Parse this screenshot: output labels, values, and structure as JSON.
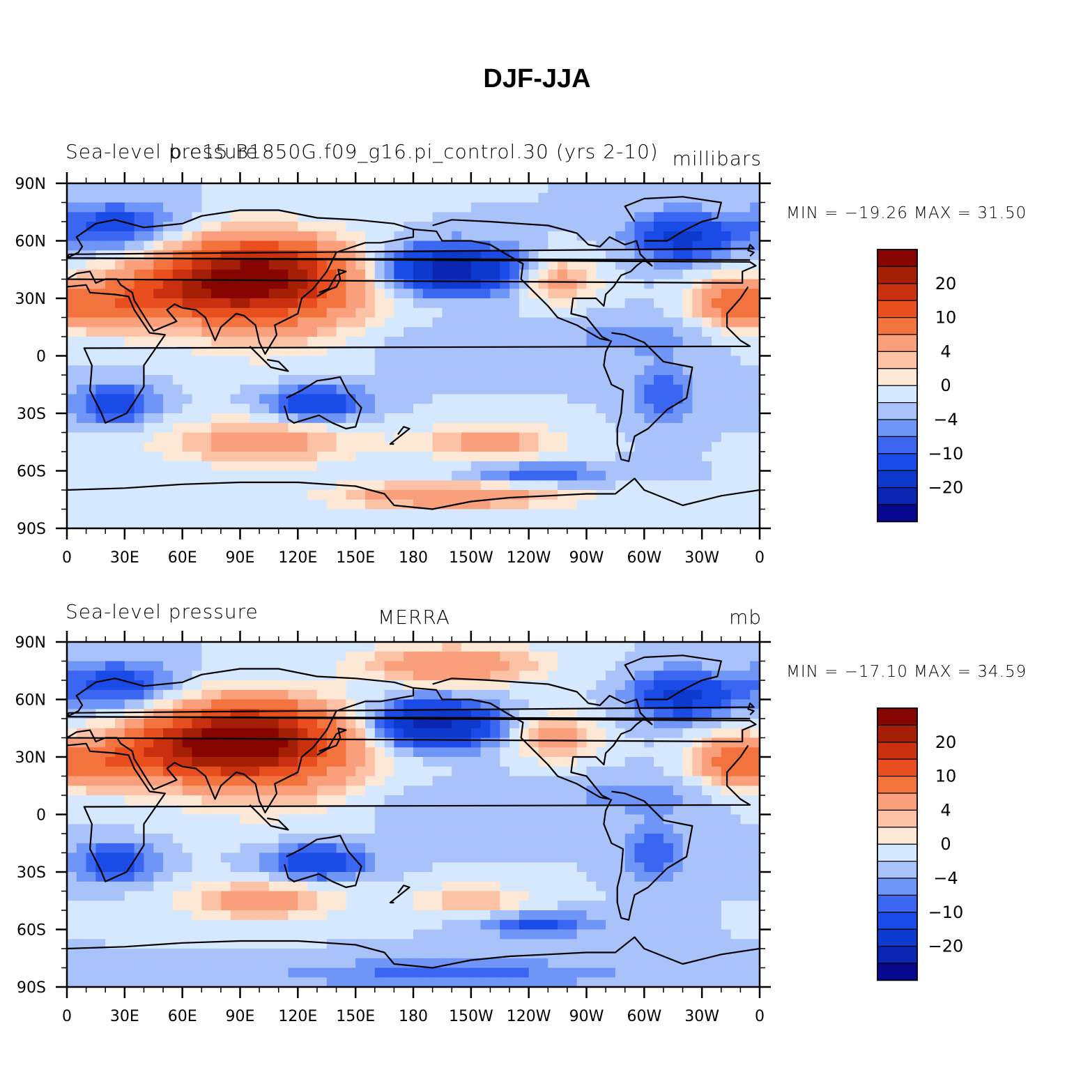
{
  "figure_title": "DJF-JJA",
  "colors": {
    "levels": [
      "#08088f",
      "#0b26b0",
      "#0d3acc",
      "#1a4be6",
      "#3a66f2",
      "#6f95f7",
      "#a9c3fa",
      "#d6e8fd",
      "#fde8d6",
      "#fcc2a6",
      "#f99f7b",
      "#f3733f",
      "#e94e1f",
      "#c8300f",
      "#a41f06",
      "#860500"
    ]
  },
  "chart_data": [
    {
      "type": "heatmap",
      "left_title": "Sea-level pressure",
      "center_title": "b.e15.B1850G.f09_g16.pi_control.30 (yrs 2-10)",
      "right_title": "millibars",
      "min_max_text": "MIN = −19.26  MAX =   31.50",
      "min": -19.26,
      "max": 31.5,
      "x_ticks": [
        "0",
        "30E",
        "60E",
        "90E",
        "120E",
        "150E",
        "180",
        "150W",
        "120W",
        "90W",
        "60W",
        "30W",
        "0"
      ],
      "y_ticks": [
        "90N",
        "60N",
        "30N",
        "0",
        "30S",
        "60S",
        "90S"
      ],
      "colorbar_labels": [
        "20",
        "10",
        "4",
        "0",
        "−4",
        "−10",
        "−20"
      ],
      "x_range": [
        0,
        360
      ],
      "y_range": [
        -90,
        90
      ]
    },
    {
      "type": "heatmap",
      "left_title": "Sea-level pressure",
      "center_title": "MERRA",
      "right_title": "mb",
      "min_max_text": "MIN = −17.10  MAX =   34.59",
      "min": -17.1,
      "max": 34.59,
      "x_ticks": [
        "0",
        "30E",
        "60E",
        "90E",
        "120E",
        "150E",
        "180",
        "150W",
        "120W",
        "90W",
        "60W",
        "30W",
        "0"
      ],
      "y_ticks": [
        "90N",
        "60N",
        "30N",
        "0",
        "30S",
        "60S",
        "90S"
      ],
      "colorbar_labels": [
        "20",
        "10",
        "4",
        "0",
        "−4",
        "−10",
        "−20"
      ],
      "x_range": [
        0,
        360
      ],
      "y_range": [
        -90,
        90
      ]
    }
  ]
}
